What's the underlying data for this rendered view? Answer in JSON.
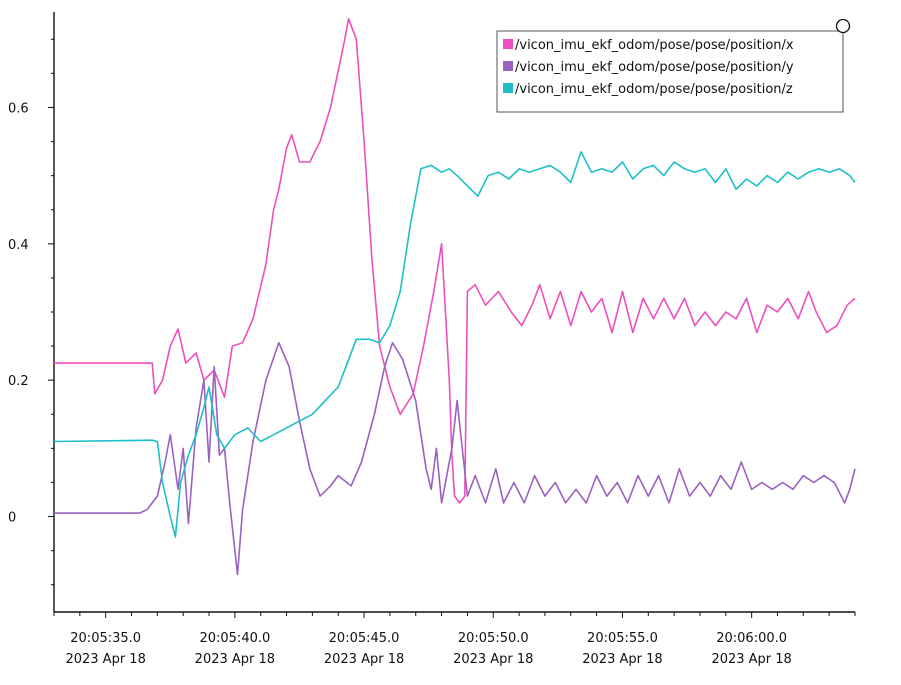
{
  "chart_data": {
    "type": "line",
    "title": "",
    "xlabel": "",
    "ylabel": "",
    "xlim": [
      "20:05:33.0",
      "20:06:04.0"
    ],
    "ylim": [
      -0.14,
      0.74
    ],
    "grid": false,
    "legend_position": "top-right",
    "y_ticks": [
      {
        "value": 0,
        "label": "0"
      },
      {
        "value": 0.2,
        "label": "0.2"
      },
      {
        "value": 0.4,
        "label": "0.4"
      },
      {
        "value": 0.6,
        "label": "0.6"
      }
    ],
    "x_ticks": [
      {
        "time": "20:05:35.0",
        "line1": "20:05:35.0",
        "line2": "2023 Apr 18"
      },
      {
        "time": "20:05:40.0",
        "line1": "20:05:40.0",
        "line2": "2023 Apr 18"
      },
      {
        "time": "20:05:45.0",
        "line1": "20:05:45.0",
        "line2": "2023 Apr 18"
      },
      {
        "time": "20:05:50.0",
        "line1": "20:05:50.0",
        "line2": "2023 Apr 18"
      },
      {
        "time": "20:05:55.0",
        "line1": "20:05:55.0",
        "line2": "2023 Apr 18"
      },
      {
        "time": "20:06:00.0",
        "line1": "20:06:00.0",
        "line2": "2023 Apr 18"
      }
    ],
    "series": [
      {
        "name": "/vicon_imu_ekf_odom/pose/pose/position/x",
        "color": "#ee4fbf",
        "points": [
          [
            "20:05:33.0",
            0.225
          ],
          [
            "20:05:36.8",
            0.225
          ],
          [
            "20:05:36.9",
            0.18
          ],
          [
            "20:05:37.2",
            0.2
          ],
          [
            "20:05:37.5",
            0.25
          ],
          [
            "20:05:37.8",
            0.275
          ],
          [
            "20:05:38.1",
            0.225
          ],
          [
            "20:05:38.5",
            0.24
          ],
          [
            "20:05:38.8",
            0.2
          ],
          [
            "20:05:39.2",
            0.215
          ],
          [
            "20:05:39.6",
            0.175
          ],
          [
            "20:05:39.9",
            0.25
          ],
          [
            "20:05:40.3",
            0.255
          ],
          [
            "20:05:40.7",
            0.29
          ],
          [
            "20:05:41.2",
            0.37
          ],
          [
            "20:05:41.5",
            0.45
          ],
          [
            "20:05:41.7",
            0.48
          ],
          [
            "20:05:42.0",
            0.54
          ],
          [
            "20:05:42.2",
            0.56
          ],
          [
            "20:05:42.5",
            0.52
          ],
          [
            "20:05:42.9",
            0.52
          ],
          [
            "20:05:43.3",
            0.55
          ],
          [
            "20:05:43.7",
            0.6
          ],
          [
            "20:05:44.2",
            0.69
          ],
          [
            "20:05:44.4",
            0.73
          ],
          [
            "20:05:44.7",
            0.7
          ],
          [
            "20:05:45.0",
            0.55
          ],
          [
            "20:05:45.3",
            0.38
          ],
          [
            "20:05:45.6",
            0.25
          ],
          [
            "20:05:46.0",
            0.19
          ],
          [
            "20:05:46.4",
            0.15
          ],
          [
            "20:05:46.9",
            0.18
          ],
          [
            "20:05:47.3",
            0.25
          ],
          [
            "20:05:47.7",
            0.33
          ],
          [
            "20:05:48.0",
            0.4
          ],
          [
            "20:05:48.3",
            0.2
          ],
          [
            "20:05:48.4",
            0.09
          ],
          [
            "20:05:48.5",
            0.03
          ],
          [
            "20:05:48.7",
            0.02
          ],
          [
            "20:05:48.9",
            0.03
          ],
          [
            "20:05:49.0",
            0.33
          ],
          [
            "20:05:49.3",
            0.34
          ],
          [
            "20:05:49.7",
            0.31
          ],
          [
            "20:05:50.2",
            0.33
          ],
          [
            "20:05:50.7",
            0.3
          ],
          [
            "20:05:51.1",
            0.28
          ],
          [
            "20:05:51.5",
            0.31
          ],
          [
            "20:05:51.8",
            0.34
          ],
          [
            "20:05:52.2",
            0.29
          ],
          [
            "20:05:52.6",
            0.33
          ],
          [
            "20:05:53.0",
            0.28
          ],
          [
            "20:05:53.4",
            0.33
          ],
          [
            "20:05:53.8",
            0.3
          ],
          [
            "20:05:54.2",
            0.32
          ],
          [
            "20:05:54.6",
            0.27
          ],
          [
            "20:05:55.0",
            0.33
          ],
          [
            "20:05:55.4",
            0.27
          ],
          [
            "20:05:55.8",
            0.32
          ],
          [
            "20:05:56.2",
            0.29
          ],
          [
            "20:05:56.6",
            0.32
          ],
          [
            "20:05:57.0",
            0.29
          ],
          [
            "20:05:57.4",
            0.32
          ],
          [
            "20:05:57.8",
            0.28
          ],
          [
            "20:05:58.2",
            0.3
          ],
          [
            "20:05:58.6",
            0.28
          ],
          [
            "20:05:59.0",
            0.3
          ],
          [
            "20:05:59.4",
            0.29
          ],
          [
            "20:05:59.8",
            0.32
          ],
          [
            "20:06:00.2",
            0.27
          ],
          [
            "20:06:00.6",
            0.31
          ],
          [
            "20:06:01.0",
            0.3
          ],
          [
            "20:06:01.4",
            0.32
          ],
          [
            "20:06:01.8",
            0.29
          ],
          [
            "20:06:02.2",
            0.33
          ],
          [
            "20:06:02.5",
            0.3
          ],
          [
            "20:06:02.9",
            0.27
          ],
          [
            "20:06:03.3",
            0.28
          ],
          [
            "20:06:03.7",
            0.31
          ],
          [
            "20:06:04.0",
            0.32
          ]
        ]
      },
      {
        "name": "/vicon_imu_ekf_odom/pose/pose/position/y",
        "color": "#9a62bf",
        "points": [
          [
            "20:05:33.0",
            0.005
          ],
          [
            "20:05:36.3",
            0.005
          ],
          [
            "20:05:36.6",
            0.01
          ],
          [
            "20:05:37.0",
            0.03
          ],
          [
            "20:05:37.3",
            0.08
          ],
          [
            "20:05:37.5",
            0.12
          ],
          [
            "20:05:37.8",
            0.04
          ],
          [
            "20:05:38.0",
            0.1
          ],
          [
            "20:05:38.2",
            -0.01
          ],
          [
            "20:05:38.5",
            0.13
          ],
          [
            "20:05:38.8",
            0.2
          ],
          [
            "20:05:39.0",
            0.08
          ],
          [
            "20:05:39.2",
            0.22
          ],
          [
            "20:05:39.4",
            0.09
          ],
          [
            "20:05:39.6",
            0.1
          ],
          [
            "20:05:39.8",
            0.02
          ],
          [
            "20:05:40.0",
            -0.05
          ],
          [
            "20:05:40.1",
            -0.085
          ],
          [
            "20:05:40.3",
            0.01
          ],
          [
            "20:05:40.7",
            0.11
          ],
          [
            "20:05:41.2",
            0.2
          ],
          [
            "20:05:41.7",
            0.255
          ],
          [
            "20:05:42.1",
            0.22
          ],
          [
            "20:05:42.5",
            0.14
          ],
          [
            "20:05:42.9",
            0.07
          ],
          [
            "20:05:43.3",
            0.03
          ],
          [
            "20:05:43.7",
            0.045
          ],
          [
            "20:05:44.0",
            0.06
          ],
          [
            "20:05:44.5",
            0.045
          ],
          [
            "20:05:44.9",
            0.08
          ],
          [
            "20:05:45.4",
            0.15
          ],
          [
            "20:05:45.8",
            0.22
          ],
          [
            "20:05:46.1",
            0.255
          ],
          [
            "20:05:46.5",
            0.23
          ],
          [
            "20:05:47.0",
            0.17
          ],
          [
            "20:05:47.4",
            0.07
          ],
          [
            "20:05:47.6",
            0.04
          ],
          [
            "20:05:47.8",
            0.1
          ],
          [
            "20:05:48.0",
            0.02
          ],
          [
            "20:05:48.4",
            0.1
          ],
          [
            "20:05:48.6",
            0.17
          ],
          [
            "20:05:48.8",
            0.1
          ],
          [
            "20:05:49.0",
            0.03
          ],
          [
            "20:05:49.3",
            0.06
          ],
          [
            "20:05:49.7",
            0.02
          ],
          [
            "20:05:50.1",
            0.07
          ],
          [
            "20:05:50.4",
            0.02
          ],
          [
            "20:05:50.8",
            0.05
          ],
          [
            "20:05:51.2",
            0.02
          ],
          [
            "20:05:51.6",
            0.06
          ],
          [
            "20:05:52.0",
            0.03
          ],
          [
            "20:05:52.4",
            0.05
          ],
          [
            "20:05:52.8",
            0.02
          ],
          [
            "20:05:53.2",
            0.04
          ],
          [
            "20:05:53.6",
            0.02
          ],
          [
            "20:05:54.0",
            0.06
          ],
          [
            "20:05:54.4",
            0.03
          ],
          [
            "20:05:54.8",
            0.05
          ],
          [
            "20:05:55.2",
            0.02
          ],
          [
            "20:05:55.6",
            0.06
          ],
          [
            "20:05:56.0",
            0.03
          ],
          [
            "20:05:56.4",
            0.06
          ],
          [
            "20:05:56.8",
            0.02
          ],
          [
            "20:05:57.2",
            0.07
          ],
          [
            "20:05:57.6",
            0.03
          ],
          [
            "20:05:58.0",
            0.05
          ],
          [
            "20:05:58.4",
            0.03
          ],
          [
            "20:05:58.8",
            0.06
          ],
          [
            "20:05:59.2",
            0.04
          ],
          [
            "20:05:59.6",
            0.08
          ],
          [
            "20:06:00.0",
            0.04
          ],
          [
            "20:06:00.4",
            0.05
          ],
          [
            "20:06:00.8",
            0.04
          ],
          [
            "20:06:01.2",
            0.05
          ],
          [
            "20:06:01.6",
            0.04
          ],
          [
            "20:06:02.0",
            0.06
          ],
          [
            "20:06:02.4",
            0.05
          ],
          [
            "20:06:02.8",
            0.06
          ],
          [
            "20:06:03.2",
            0.05
          ],
          [
            "20:06:03.6",
            0.02
          ],
          [
            "20:06:03.8",
            0.04
          ],
          [
            "20:06:04.0",
            0.07
          ]
        ]
      },
      {
        "name": "/vicon_imu_ekf_odom/pose/pose/position/z",
        "color": "#1fbfc9",
        "points": [
          [
            "20:05:33.0",
            0.11
          ],
          [
            "20:05:36.8",
            0.112
          ],
          [
            "20:05:37.0",
            0.11
          ],
          [
            "20:05:37.2",
            0.05
          ],
          [
            "20:05:37.5",
            0.0
          ],
          [
            "20:05:37.7",
            -0.03
          ],
          [
            "20:05:37.9",
            0.05
          ],
          [
            "20:05:38.2",
            0.09
          ],
          [
            "20:05:38.5",
            0.12
          ],
          [
            "20:05:38.8",
            0.16
          ],
          [
            "20:05:39.0",
            0.19
          ],
          [
            "20:05:39.3",
            0.12
          ],
          [
            "20:05:39.6",
            0.1
          ],
          [
            "20:05:40.0",
            0.12
          ],
          [
            "20:05:40.5",
            0.13
          ],
          [
            "20:05:41.0",
            0.11
          ],
          [
            "20:05:41.5",
            0.12
          ],
          [
            "20:05:42.0",
            0.13
          ],
          [
            "20:05:42.5",
            0.14
          ],
          [
            "20:05:43.0",
            0.15
          ],
          [
            "20:05:43.5",
            0.17
          ],
          [
            "20:05:44.0",
            0.19
          ],
          [
            "20:05:44.4",
            0.23
          ],
          [
            "20:05:44.7",
            0.26
          ],
          [
            "20:05:45.2",
            0.26
          ],
          [
            "20:05:45.6",
            0.255
          ],
          [
            "20:05:46.0",
            0.28
          ],
          [
            "20:05:46.4",
            0.33
          ],
          [
            "20:05:46.8",
            0.43
          ],
          [
            "20:05:47.2",
            0.51
          ],
          [
            "20:05:47.6",
            0.515
          ],
          [
            "20:05:48.0",
            0.505
          ],
          [
            "20:05:48.3",
            0.51
          ],
          [
            "20:05:48.6",
            0.5
          ],
          [
            "20:05:49.0",
            0.485
          ],
          [
            "20:05:49.4",
            0.47
          ],
          [
            "20:05:49.8",
            0.5
          ],
          [
            "20:05:50.2",
            0.505
          ],
          [
            "20:05:50.6",
            0.495
          ],
          [
            "20:05:51.0",
            0.51
          ],
          [
            "20:05:51.4",
            0.505
          ],
          [
            "20:05:51.8",
            0.51
          ],
          [
            "20:05:52.2",
            0.515
          ],
          [
            "20:05:52.6",
            0.505
          ],
          [
            "20:05:53.0",
            0.49
          ],
          [
            "20:05:53.4",
            0.535
          ],
          [
            "20:05:53.8",
            0.505
          ],
          [
            "20:05:54.2",
            0.51
          ],
          [
            "20:05:54.6",
            0.505
          ],
          [
            "20:05:55.0",
            0.52
          ],
          [
            "20:05:55.4",
            0.495
          ],
          [
            "20:05:55.8",
            0.51
          ],
          [
            "20:05:56.2",
            0.515
          ],
          [
            "20:05:56.6",
            0.5
          ],
          [
            "20:05:57.0",
            0.52
          ],
          [
            "20:05:57.4",
            0.51
          ],
          [
            "20:05:57.8",
            0.505
          ],
          [
            "20:05:58.2",
            0.51
          ],
          [
            "20:05:58.6",
            0.49
          ],
          [
            "20:05:59.0",
            0.51
          ],
          [
            "20:05:59.4",
            0.48
          ],
          [
            "20:05:59.8",
            0.495
          ],
          [
            "20:06:00.2",
            0.485
          ],
          [
            "20:06:00.6",
            0.5
          ],
          [
            "20:06:01.0",
            0.49
          ],
          [
            "20:06:01.4",
            0.505
          ],
          [
            "20:06:01.8",
            0.495
          ],
          [
            "20:06:02.2",
            0.505
          ],
          [
            "20:06:02.6",
            0.51
          ],
          [
            "20:06:03.0",
            0.505
          ],
          [
            "20:06:03.4",
            0.51
          ],
          [
            "20:06:03.8",
            0.5
          ],
          [
            "20:06:04.0",
            0.49
          ]
        ]
      }
    ]
  }
}
